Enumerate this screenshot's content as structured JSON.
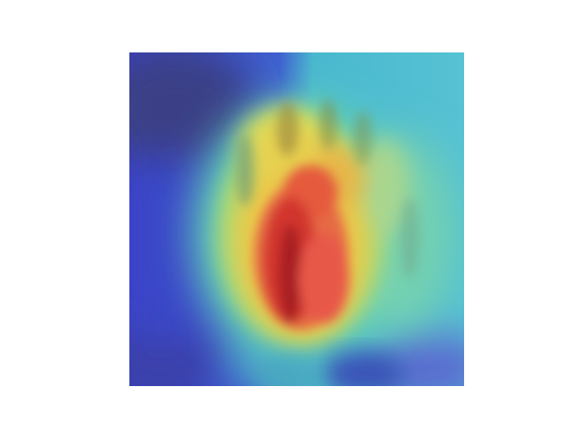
{
  "figure": {
    "kind": "class-activation heatmap overlay",
    "subject": "hand",
    "colormap": "jet",
    "palette": {
      "low": "#3b3fc8",
      "low_dark": "#3a3f86",
      "mid_low": "#45b9d2",
      "mid": "#7fd3a8",
      "mid_high": "#e6d14a",
      "high": "#e8563f",
      "peak": "#b01e22"
    }
  }
}
